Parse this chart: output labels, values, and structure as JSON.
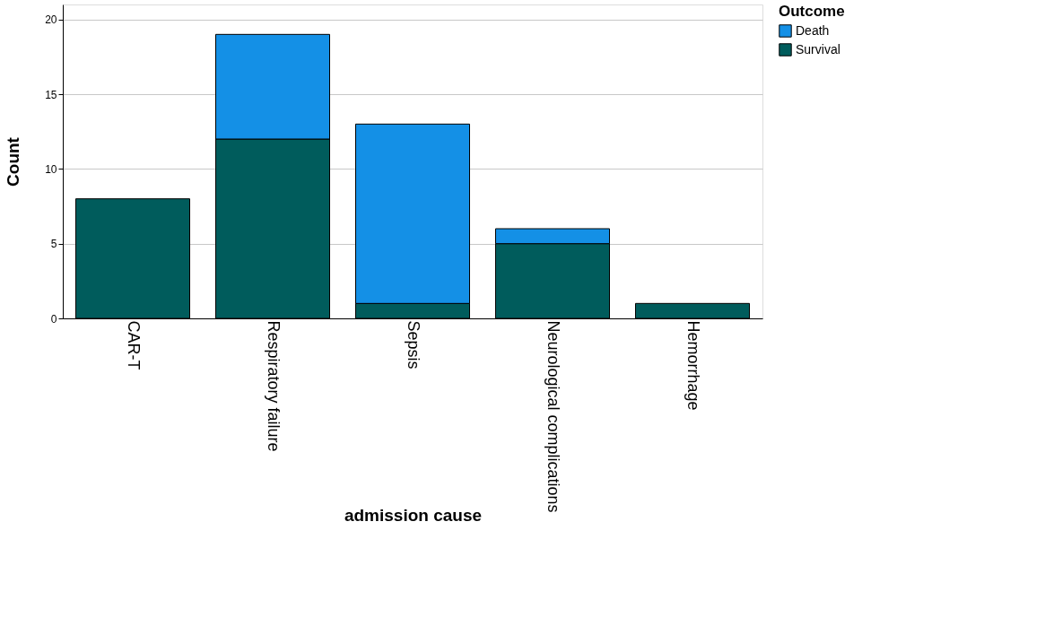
{
  "chart_data": {
    "type": "bar",
    "stacked": true,
    "xlabel": "admission cause",
    "ylabel": "Count",
    "legend_title": "Outcome",
    "legend": "top right",
    "categories": [
      "CAR-T",
      "Respiratory failure",
      "Sepsis",
      "Neurological complications",
      "Hemorrhage"
    ],
    "series": [
      {
        "name": "Survival",
        "color": "#005c5c",
        "values": [
          8,
          12,
          1,
          5,
          1
        ]
      },
      {
        "name": "Death",
        "color": "#1490e6",
        "values": [
          null,
          7,
          12,
          1,
          null
        ]
      }
    ],
    "ylim": [
      0,
      21
    ],
    "yticks": [
      0,
      5,
      10,
      15,
      20
    ],
    "grid": "y"
  }
}
